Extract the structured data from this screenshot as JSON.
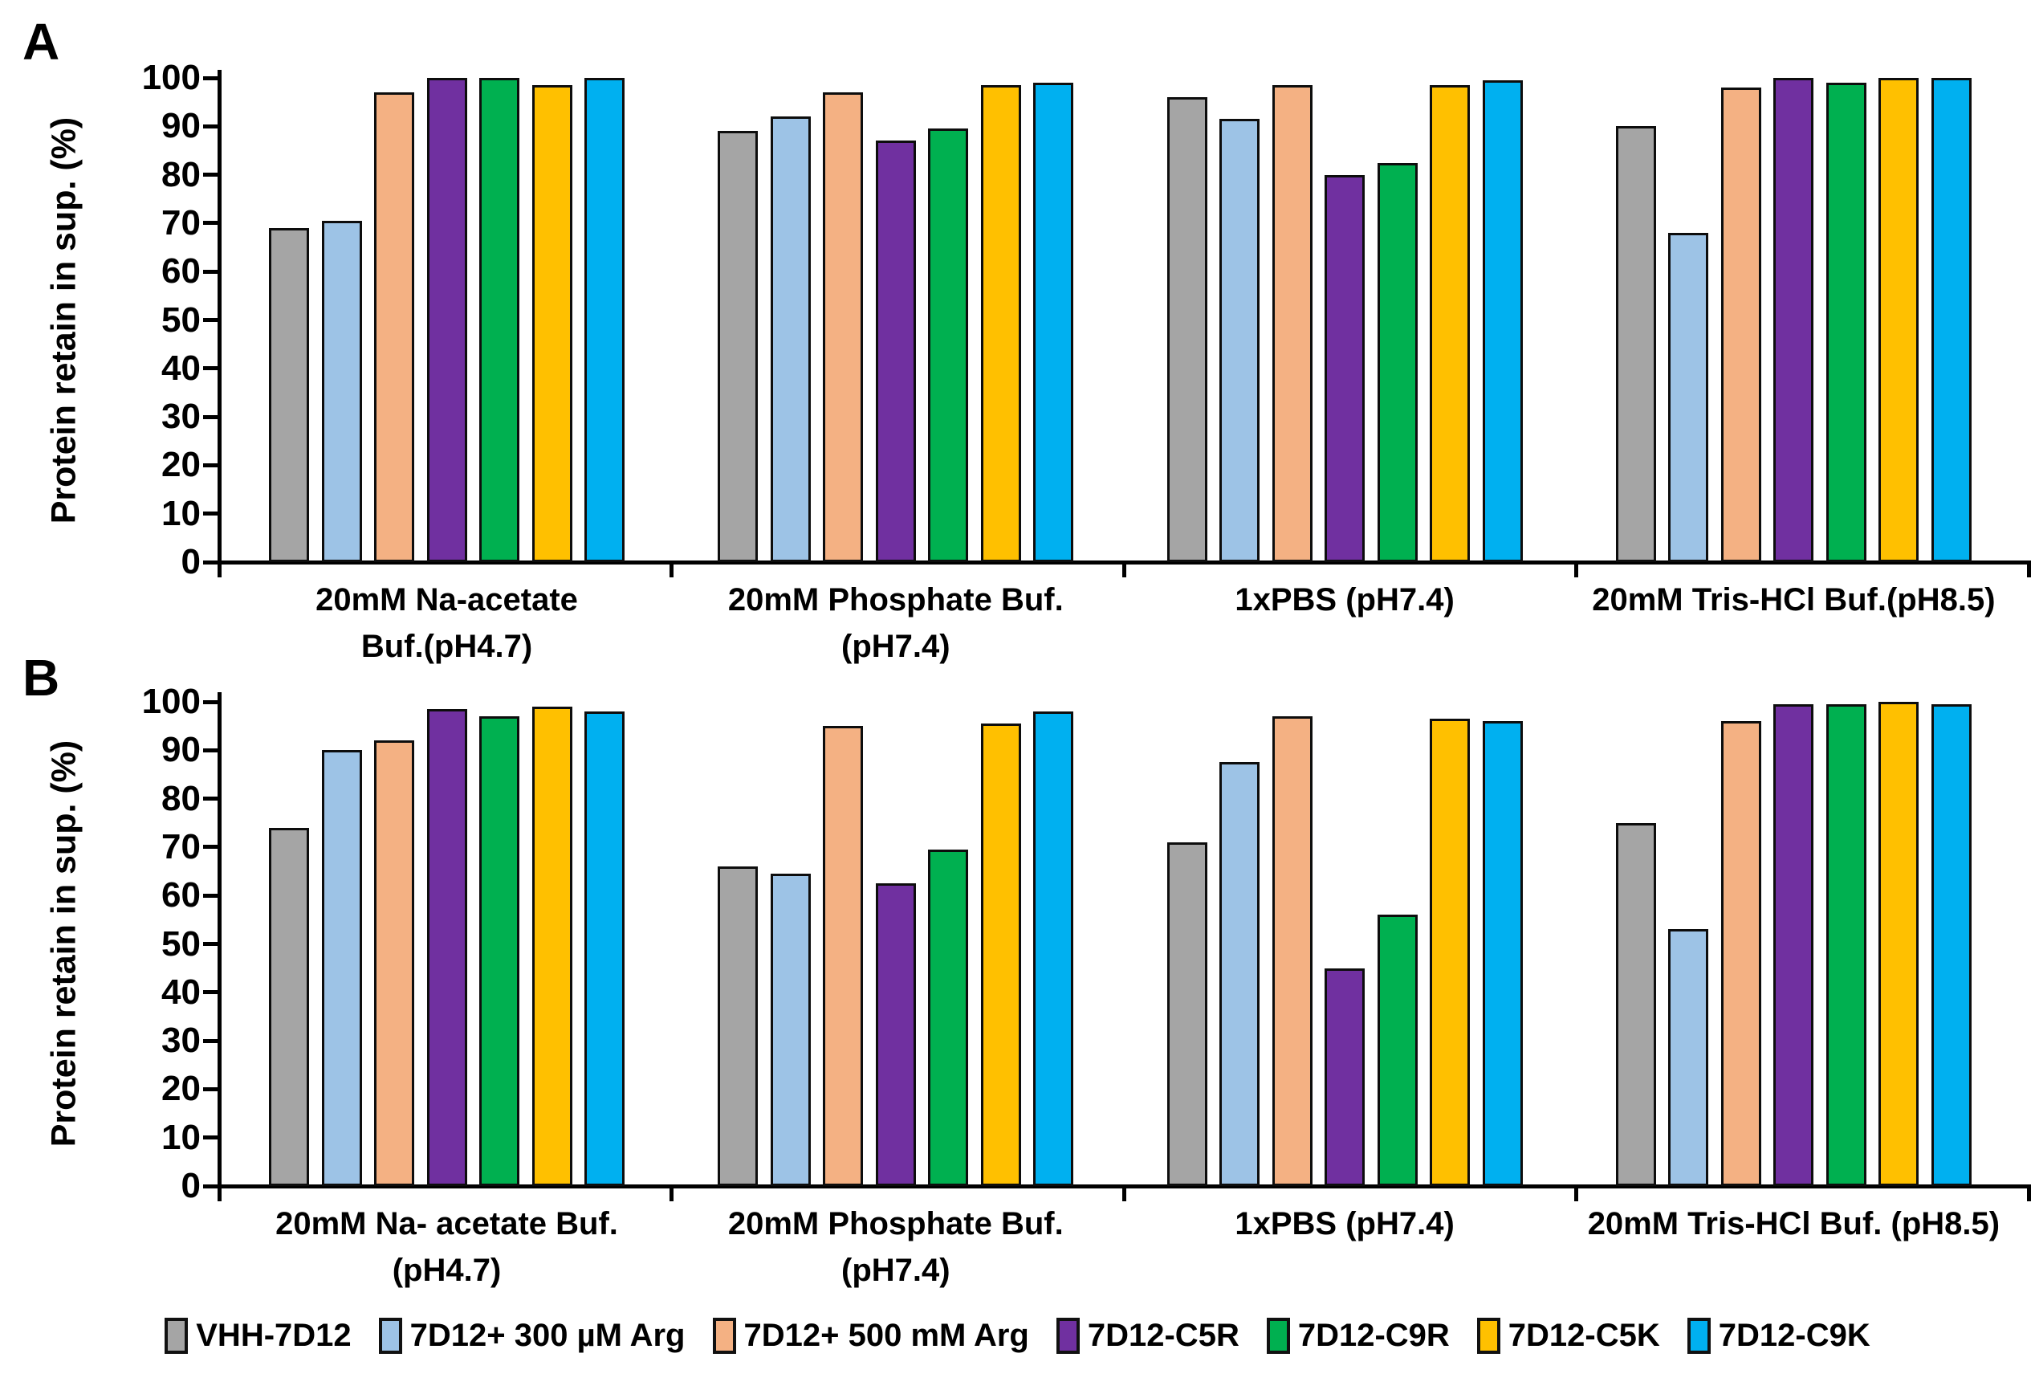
{
  "figure": {
    "background": "#FFFFFF",
    "bar_outline_color": "#0D0D0D",
    "text_color": "#000000"
  },
  "chart_data": [
    {
      "type": "bar",
      "panel": "A",
      "ylabel": "Protein retain in sup. (%)",
      "ylim": [
        0,
        100
      ],
      "ytick_step": 10,
      "grid": false,
      "legend_position": "bottom-shared",
      "categories": [
        "20mM Na-acetate\nBuf.(pH4.7)",
        "20mM Phosphate Buf.\n(pH7.4)",
        "1xPBS (pH7.4)",
        "20mM Tris-HCl Buf.(pH8.5)"
      ],
      "series": [
        {
          "name": "VHH-7D12",
          "color": "#A5A5A5",
          "values": [
            69,
            89,
            96,
            90
          ]
        },
        {
          "name": "7D12+ 300 µM Arg",
          "color": "#9DC3E6",
          "values": [
            70.5,
            92,
            91.5,
            68
          ]
        },
        {
          "name": "7D12+ 500 mM Arg",
          "color": "#F4B183",
          "values": [
            97,
            97,
            98.5,
            98
          ]
        },
        {
          "name": "7D12-C5R",
          "color": "#7030A0",
          "values": [
            100,
            87,
            80,
            100
          ]
        },
        {
          "name": "7D12-C9R",
          "color": "#00B050",
          "values": [
            100,
            89.5,
            82.5,
            99
          ]
        },
        {
          "name": "7D12-C5K",
          "color": "#FFC000",
          "values": [
            98.5,
            98.5,
            98.5,
            100
          ]
        },
        {
          "name": "7D12-C9K",
          "color": "#00B0F0",
          "values": [
            100,
            99,
            99.5,
            100
          ]
        }
      ]
    },
    {
      "type": "bar",
      "panel": "B",
      "ylabel": "Protein retain in sup. (%)",
      "ylim": [
        0,
        100
      ],
      "ytick_step": 10,
      "grid": false,
      "legend_position": "bottom-shared",
      "categories": [
        "20mM Na- acetate Buf.\n(pH4.7)",
        "20mM Phosphate Buf.\n(pH7.4)",
        "1xPBS (pH7.4)",
        "20mM Tris-HCl Buf. (pH8.5)"
      ],
      "series": [
        {
          "name": "VHH-7D12",
          "color": "#A5A5A5",
          "values": [
            74,
            66,
            71,
            75
          ]
        },
        {
          "name": "7D12+ 300 µM Arg",
          "color": "#9DC3E6",
          "values": [
            90,
            64.5,
            87.5,
            53
          ]
        },
        {
          "name": "7D12+ 500 mM Arg",
          "color": "#F4B183",
          "values": [
            92,
            95,
            97,
            96
          ]
        },
        {
          "name": "7D12-C5R",
          "color": "#7030A0",
          "values": [
            98.5,
            62.5,
            45,
            99.5
          ]
        },
        {
          "name": "7D12-C9R",
          "color": "#00B050",
          "values": [
            97,
            69.5,
            56,
            99.5
          ]
        },
        {
          "name": "7D12-C5K",
          "color": "#FFC000",
          "values": [
            99,
            95.5,
            96.5,
            100
          ]
        },
        {
          "name": "7D12-C9K",
          "color": "#00B0F0",
          "values": [
            98,
            98,
            96,
            99.5
          ]
        }
      ]
    }
  ]
}
